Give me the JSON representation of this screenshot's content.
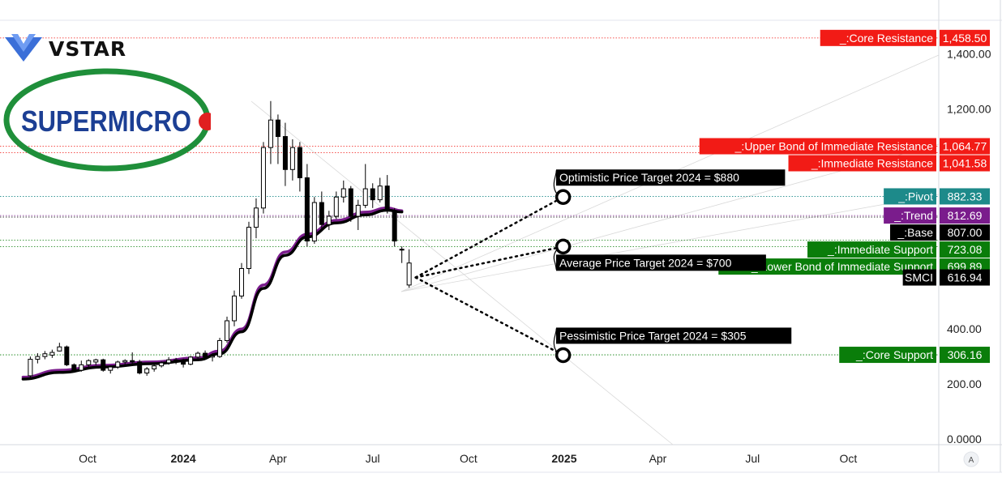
{
  "brand": {
    "name": "VSTAR"
  },
  "company_logo": {
    "text": "SUPERMICRO"
  },
  "chart_data": {
    "type": "candlestick",
    "symbol": "SMCI",
    "last_price": 616.94,
    "y_range": [
      0,
      1500
    ],
    "y_ticks": [
      {
        "value": 0,
        "label": "0.0000"
      },
      {
        "value": 200,
        "label": "200.00"
      },
      {
        "value": 400,
        "label": "400.00"
      },
      {
        "value": 1200,
        "label": "1,200.00"
      },
      {
        "value": 1400,
        "label": "1,400.00"
      }
    ],
    "x_ticks": [
      {
        "date": "2023-10-01",
        "label": "Oct",
        "bold": false
      },
      {
        "date": "2024-01-01",
        "label": "2024",
        "bold": true
      },
      {
        "date": "2024-04-01",
        "label": "Apr",
        "bold": false
      },
      {
        "date": "2024-07-01",
        "label": "Jul",
        "bold": false
      },
      {
        "date": "2024-10-01",
        "label": "Oct",
        "bold": false
      },
      {
        "date": "2025-01-01",
        "label": "2025",
        "bold": true
      },
      {
        "date": "2025-04-01",
        "label": "Apr",
        "bold": false
      },
      {
        "date": "2025-07-01",
        "label": "Jul",
        "bold": false
      },
      {
        "date": "2025-10-01",
        "label": "Oct",
        "bold": false
      }
    ],
    "levels": [
      {
        "label": "_:Core Resistance",
        "value": 1458.5,
        "value_label": "1,458.50",
        "color": "#f21b16"
      },
      {
        "label": "_:Upper Bond of Immediate Resistance",
        "value": 1064.77,
        "value_label": "1,064.77",
        "color": "#f21b16"
      },
      {
        "label": "_:Immediate Resistance",
        "value": 1041.58,
        "value_label": "1,041.58",
        "color": "#f21b16"
      },
      {
        "label": "_:Pivot",
        "value": 882.33,
        "value_label": "882.33",
        "color": "#1d8a8a"
      },
      {
        "label": "_:Trend",
        "value": 812.69,
        "value_label": "812.69",
        "color": "#7a1c8c"
      },
      {
        "label": "_:Base",
        "value": 807.0,
        "value_label": "807.00",
        "color": "#000000"
      },
      {
        "label": "_:Immediate Support",
        "value": 723.08,
        "value_label": "723.08",
        "color": "#0a7d0a"
      },
      {
        "label": "_:Lower Bond of Immediate Support",
        "value": 699.89,
        "value_label": "699.89",
        "color": "#0a7d0a"
      },
      {
        "label": "_:Core Support",
        "value": 306.16,
        "value_label": "306.16",
        "color": "#0a7d0a"
      }
    ],
    "targets": [
      {
        "label": "Optimistic Price Target 2024 = $880",
        "value": 880,
        "date": "2024-12-31"
      },
      {
        "label": "Average Price Target 2024 = $700",
        "value": 700,
        "date": "2024-12-31"
      },
      {
        "label": "Pessimistic Price Target 2024 = $305",
        "value": 305,
        "date": "2024-12-31"
      }
    ],
    "candles": [
      {
        "date": "2023-08-07",
        "o": 230,
        "h": 300,
        "l": 215,
        "c": 290
      },
      {
        "date": "2023-08-14",
        "o": 290,
        "h": 312,
        "l": 275,
        "c": 300
      },
      {
        "date": "2023-08-21",
        "o": 300,
        "h": 320,
        "l": 290,
        "c": 310
      },
      {
        "date": "2023-08-28",
        "o": 305,
        "h": 325,
        "l": 295,
        "c": 315
      },
      {
        "date": "2023-09-04",
        "o": 320,
        "h": 350,
        "l": 318,
        "c": 335
      },
      {
        "date": "2023-09-11",
        "o": 335,
        "h": 340,
        "l": 265,
        "c": 270
      },
      {
        "date": "2023-09-18",
        "o": 270,
        "h": 275,
        "l": 242,
        "c": 250
      },
      {
        "date": "2023-09-25",
        "o": 250,
        "h": 285,
        "l": 245,
        "c": 270
      },
      {
        "date": "2023-10-02",
        "o": 270,
        "h": 290,
        "l": 255,
        "c": 285
      },
      {
        "date": "2023-10-09",
        "o": 280,
        "h": 292,
        "l": 268,
        "c": 288
      },
      {
        "date": "2023-10-16",
        "o": 288,
        "h": 292,
        "l": 245,
        "c": 250
      },
      {
        "date": "2023-10-23",
        "o": 250,
        "h": 268,
        "l": 238,
        "c": 262
      },
      {
        "date": "2023-10-30",
        "o": 262,
        "h": 285,
        "l": 255,
        "c": 280
      },
      {
        "date": "2023-11-06",
        "o": 280,
        "h": 290,
        "l": 268,
        "c": 285
      },
      {
        "date": "2023-11-13",
        "o": 285,
        "h": 315,
        "l": 272,
        "c": 280
      },
      {
        "date": "2023-11-20",
        "o": 280,
        "h": 288,
        "l": 235,
        "c": 240
      },
      {
        "date": "2023-11-27",
        "o": 240,
        "h": 262,
        "l": 230,
        "c": 255
      },
      {
        "date": "2023-12-04",
        "o": 255,
        "h": 272,
        "l": 245,
        "c": 266
      },
      {
        "date": "2023-12-11",
        "o": 266,
        "h": 282,
        "l": 260,
        "c": 277
      },
      {
        "date": "2023-12-18",
        "o": 277,
        "h": 298,
        "l": 270,
        "c": 288
      },
      {
        "date": "2023-12-25",
        "o": 288,
        "h": 295,
        "l": 272,
        "c": 280
      },
      {
        "date": "2024-01-01",
        "o": 280,
        "h": 292,
        "l": 260,
        "c": 272
      },
      {
        "date": "2024-01-08",
        "o": 272,
        "h": 302,
        "l": 268,
        "c": 298
      },
      {
        "date": "2024-01-15",
        "o": 298,
        "h": 318,
        "l": 290,
        "c": 312
      },
      {
        "date": "2024-01-22",
        "o": 312,
        "h": 322,
        "l": 292,
        "c": 298
      },
      {
        "date": "2024-01-29",
        "o": 298,
        "h": 312,
        "l": 282,
        "c": 302
      },
      {
        "date": "2024-02-05",
        "o": 300,
        "h": 368,
        "l": 295,
        "c": 358
      },
      {
        "date": "2024-02-12",
        "o": 358,
        "h": 445,
        "l": 350,
        "c": 430
      },
      {
        "date": "2024-02-19",
        "o": 430,
        "h": 540,
        "l": 410,
        "c": 520
      },
      {
        "date": "2024-02-26",
        "o": 520,
        "h": 640,
        "l": 510,
        "c": 620
      },
      {
        "date": "2024-03-04",
        "o": 620,
        "h": 790,
        "l": 600,
        "c": 770
      },
      {
        "date": "2024-03-11",
        "o": 770,
        "h": 875,
        "l": 730,
        "c": 840
      },
      {
        "date": "2024-03-18",
        "o": 840,
        "h": 1080,
        "l": 820,
        "c": 1060
      },
      {
        "date": "2024-03-25",
        "o": 1060,
        "h": 1229,
        "l": 1000,
        "c": 1160
      },
      {
        "date": "2024-04-01",
        "o": 1160,
        "h": 1180,
        "l": 1000,
        "c": 1100
      },
      {
        "date": "2024-04-08",
        "o": 1100,
        "h": 1150,
        "l": 920,
        "c": 980
      },
      {
        "date": "2024-04-15",
        "o": 980,
        "h": 1090,
        "l": 940,
        "c": 1060
      },
      {
        "date": "2024-04-22",
        "o": 1060,
        "h": 1080,
        "l": 900,
        "c": 950
      },
      {
        "date": "2024-04-29",
        "o": 950,
        "h": 1000,
        "l": 700,
        "c": 720
      },
      {
        "date": "2024-05-06",
        "o": 720,
        "h": 880,
        "l": 710,
        "c": 860
      },
      {
        "date": "2024-05-13",
        "o": 860,
        "h": 900,
        "l": 760,
        "c": 780
      },
      {
        "date": "2024-05-20",
        "o": 780,
        "h": 830,
        "l": 760,
        "c": 810
      },
      {
        "date": "2024-05-27",
        "o": 810,
        "h": 900,
        "l": 800,
        "c": 880
      },
      {
        "date": "2024-06-03",
        "o": 880,
        "h": 940,
        "l": 860,
        "c": 910
      },
      {
        "date": "2024-06-10",
        "o": 910,
        "h": 920,
        "l": 790,
        "c": 810
      },
      {
        "date": "2024-06-17",
        "o": 810,
        "h": 870,
        "l": 760,
        "c": 850
      },
      {
        "date": "2024-06-24",
        "o": 850,
        "h": 1000,
        "l": 840,
        "c": 910
      },
      {
        "date": "2024-07-01",
        "o": 910,
        "h": 930,
        "l": 840,
        "c": 870
      },
      {
        "date": "2024-07-08",
        "o": 870,
        "h": 950,
        "l": 860,
        "c": 920
      },
      {
        "date": "2024-07-15",
        "o": 920,
        "h": 960,
        "l": 820,
        "c": 830
      },
      {
        "date": "2024-07-22",
        "o": 830,
        "h": 840,
        "l": 700,
        "c": 720
      },
      {
        "date": "2024-07-29",
        "o": 690,
        "h": 700,
        "l": 640,
        "c": 690
      },
      {
        "date": "2024-08-05",
        "o": 560,
        "h": 690,
        "l": 550,
        "c": 640
      }
    ],
    "moving_averages": [
      {
        "color": "#7a1c8c",
        "points": [
          {
            "date": "2023-07-31",
            "v": 225
          },
          {
            "date": "2023-09-04",
            "v": 250
          },
          {
            "date": "2023-10-16",
            "v": 268
          },
          {
            "date": "2023-12-01",
            "v": 280
          },
          {
            "date": "2024-01-15",
            "v": 295
          },
          {
            "date": "2024-02-05",
            "v": 320
          },
          {
            "date": "2024-02-26",
            "v": 400
          },
          {
            "date": "2024-03-18",
            "v": 560
          },
          {
            "date": "2024-04-08",
            "v": 680
          },
          {
            "date": "2024-04-29",
            "v": 745
          },
          {
            "date": "2024-05-27",
            "v": 795
          },
          {
            "date": "2024-06-24",
            "v": 825
          },
          {
            "date": "2024-07-15",
            "v": 840
          },
          {
            "date": "2024-07-29",
            "v": 830
          }
        ]
      },
      {
        "color": "#000000",
        "points": [
          {
            "date": "2023-07-31",
            "v": 218
          },
          {
            "date": "2023-09-04",
            "v": 242
          },
          {
            "date": "2023-10-16",
            "v": 262
          },
          {
            "date": "2023-12-01",
            "v": 274
          },
          {
            "date": "2024-01-15",
            "v": 288
          },
          {
            "date": "2024-02-05",
            "v": 310
          },
          {
            "date": "2024-02-26",
            "v": 390
          },
          {
            "date": "2024-03-18",
            "v": 548
          },
          {
            "date": "2024-04-08",
            "v": 668
          },
          {
            "date": "2024-04-29",
            "v": 735
          },
          {
            "date": "2024-05-27",
            "v": 786
          },
          {
            "date": "2024-06-24",
            "v": 815
          },
          {
            "date": "2024-07-15",
            "v": 832
          },
          {
            "date": "2024-07-29",
            "v": 826
          }
        ]
      }
    ]
  }
}
